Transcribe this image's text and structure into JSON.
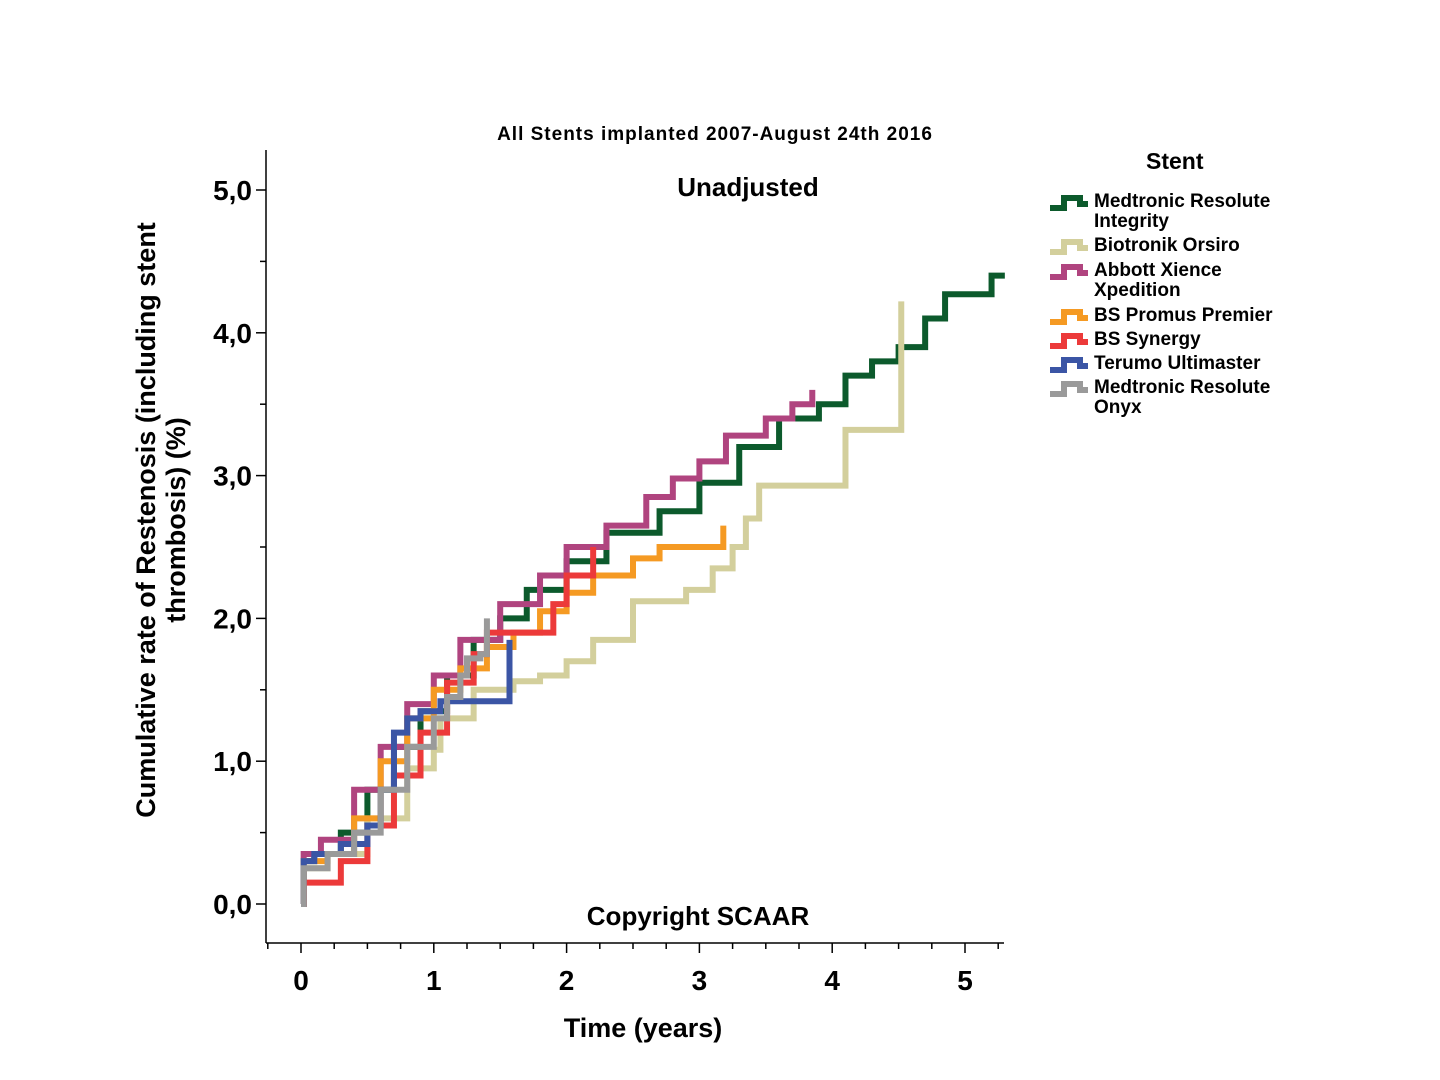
{
  "chart_data": {
    "type": "line",
    "title": "All Stents implanted 2007-August 24th 2016",
    "subtitle": "Unadjusted",
    "annotation": "Copyright SCAAR",
    "xlabel": "Time (years)",
    "ylabel": "Cumulative rate of Restenosis (including stent\nthrombosis) (%)",
    "xlim": [
      -0.25,
      5.3
    ],
    "ylim": [
      -0.25,
      5.3
    ],
    "x_ticks": [
      0,
      1,
      2,
      3,
      4,
      5
    ],
    "x_tick_labels": [
      "0",
      "1",
      "2",
      "3",
      "4",
      "5"
    ],
    "y_ticks": [
      0,
      1,
      2,
      3,
      4,
      5
    ],
    "y_tick_labels": [
      "0,0",
      "1,0",
      "2,0",
      "3,0",
      "4,0",
      "5,0"
    ],
    "legend_title": "Stent",
    "legend_position": "right",
    "step": true,
    "series": [
      {
        "name": "Medtronic Resolute\nIntegrity",
        "color": "#0c5a2c",
        "x": [
          0,
          0.02,
          0.1,
          0.3,
          0.5,
          0.7,
          0.9,
          1.1,
          1.3,
          1.5,
          1.7,
          2.0,
          2.3,
          2.7,
          3.0,
          3.3,
          3.6,
          3.9,
          4.1,
          4.3,
          4.5,
          4.7,
          4.85,
          5.2,
          5.3
        ],
        "y": [
          0,
          0.3,
          0.35,
          0.5,
          0.8,
          1.1,
          1.35,
          1.6,
          1.85,
          2.0,
          2.2,
          2.4,
          2.6,
          2.75,
          2.95,
          3.2,
          3.4,
          3.5,
          3.7,
          3.8,
          3.9,
          4.1,
          4.27,
          4.4,
          4.4
        ]
      },
      {
        "name": "Biotronik Orsiro",
        "color": "#d3cf9c",
        "x": [
          0,
          0.02,
          0.2,
          0.5,
          0.8,
          1.0,
          1.05,
          1.3,
          1.6,
          1.8,
          2.0,
          2.2,
          2.5,
          2.9,
          3.1,
          3.25,
          3.35,
          3.45,
          4.1,
          4.52,
          4.52
        ],
        "y": [
          0,
          0.25,
          0.35,
          0.6,
          0.95,
          1.08,
          1.3,
          1.5,
          1.56,
          1.6,
          1.7,
          1.85,
          2.12,
          2.2,
          2.35,
          2.5,
          2.7,
          2.93,
          3.32,
          3.32,
          4.22
        ]
      },
      {
        "name": "Abbott Xience\nXpedition",
        "color": "#b0447f",
        "x": [
          0,
          0.02,
          0.15,
          0.4,
          0.6,
          0.8,
          1.0,
          1.2,
          1.5,
          1.8,
          2.0,
          2.3,
          2.6,
          2.8,
          3.0,
          3.2,
          3.5,
          3.7,
          3.85
        ],
        "y": [
          0,
          0.35,
          0.45,
          0.8,
          1.1,
          1.4,
          1.6,
          1.85,
          2.1,
          2.3,
          2.5,
          2.65,
          2.85,
          2.98,
          3.1,
          3.28,
          3.4,
          3.5,
          3.6
        ]
      },
      {
        "name": "BS Promus Premier",
        "color": "#f59a23",
        "x": [
          0,
          0.02,
          0.2,
          0.4,
          0.6,
          0.8,
          1.0,
          1.2,
          1.4,
          1.6,
          1.8,
          2.0,
          2.2,
          2.5,
          2.7,
          3.0,
          3.18,
          3.18
        ],
        "y": [
          0,
          0.3,
          0.35,
          0.6,
          1.0,
          1.3,
          1.5,
          1.65,
          1.8,
          1.9,
          2.05,
          2.18,
          2.3,
          2.42,
          2.5,
          2.5,
          2.5,
          2.65
        ]
      },
      {
        "name": "BS Synergy",
        "color": "#ec3a3a",
        "x": [
          0,
          0.02,
          0.3,
          0.5,
          0.7,
          0.9,
          1.1,
          1.3,
          1.4,
          1.7,
          1.9,
          2.0,
          2.2,
          2.2
        ],
        "y": [
          0,
          0.15,
          0.3,
          0.55,
          0.9,
          1.2,
          1.55,
          1.75,
          1.9,
          1.9,
          2.1,
          2.3,
          2.3,
          2.5
        ]
      },
      {
        "name": "Terumo Ultimaster",
        "color": "#3b55a5",
        "x": [
          0,
          0.02,
          0.1,
          0.3,
          0.5,
          0.6,
          0.7,
          0.8,
          0.9,
          1.05,
          1.3,
          1.57,
          1.57
        ],
        "y": [
          0,
          0.3,
          0.35,
          0.42,
          0.55,
          0.8,
          1.2,
          1.3,
          1.35,
          1.42,
          1.42,
          1.42,
          1.85
        ]
      },
      {
        "name": "Medtronic Resolute\nOnyx",
        "color": "#9a9a9a",
        "x": [
          0,
          0.02,
          0.2,
          0.4,
          0.6,
          0.8,
          1.0,
          1.1,
          1.2,
          1.25,
          1.35,
          1.4,
          1.4
        ],
        "y": [
          0,
          0.25,
          0.35,
          0.5,
          0.8,
          1.1,
          1.3,
          1.45,
          1.6,
          1.72,
          1.75,
          1.75,
          2.0
        ]
      }
    ]
  }
}
